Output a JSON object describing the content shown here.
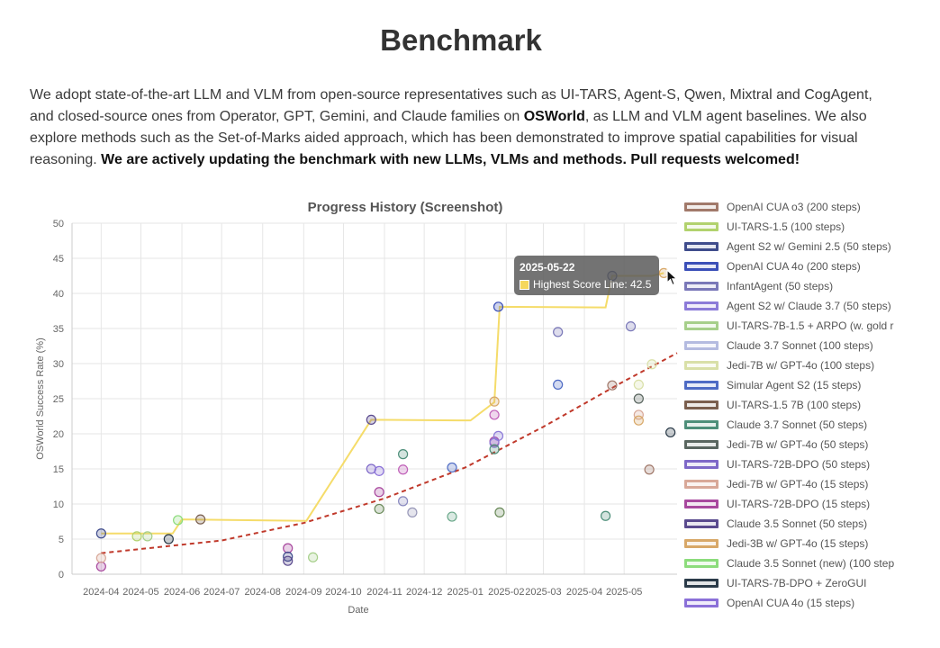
{
  "heading": "Benchmark",
  "intro": {
    "p1": "We adopt state-of-the-art LLM and VLM from open-source representatives such as UI-TARS, Agent-S, Qwen, Mixtral and CogAgent, and closed-source ones from Operator, GPT, Gemini, and Claude families on ",
    "bold1": "OSWorld",
    "p2": ", as LLM and VLM agent baselines. We also explore methods such as the Set-of-Marks aided approach, which has been demonstrated to improve spatial capabilities for visual reasoning. ",
    "bold2": "We are actively updating the benchmark with new LLMs, VLMs and methods. Pull requests welcomed!"
  },
  "tooltip": {
    "title": "2025-05-22",
    "label": "Highest Score Line: 42.5"
  },
  "cursor_icon": "mouse-pointer-icon",
  "chart_data": {
    "type": "scatter",
    "title": "Progress History (Screenshot)",
    "xlabel": "Date",
    "ylabel": "OSWorld Success Rate (%)",
    "ylim": [
      0,
      50
    ],
    "yticks": [
      0,
      5,
      10,
      15,
      20,
      25,
      30,
      35,
      40,
      45,
      50
    ],
    "xlim": [
      "2024-03-10",
      "2025-06-10"
    ],
    "xticks": [
      "2024-04",
      "2024-05",
      "2024-06",
      "2024-07",
      "2024-08",
      "2024-09",
      "2024-10",
      "2024-11",
      "2024-12",
      "2025-01",
      "2025-02",
      "2025-03",
      "2025-04",
      "2025-05"
    ],
    "grid": true,
    "legend_position": "right",
    "legend": [
      {
        "label": "OpenAI CUA o3 (200 steps)",
        "color": "#a1796a"
      },
      {
        "label": "UI-TARS-1.5 (100 steps)",
        "color": "#b2d26e"
      },
      {
        "label": "Agent S2 w/ Gemini 2.5 (50 steps)",
        "color": "#3f4c8c"
      },
      {
        "label": "OpenAI CUA 4o (200 steps)",
        "color": "#3b4fb8"
      },
      {
        "label": "InfantAgent (50 steps)",
        "color": "#7a78b8"
      },
      {
        "label": "Agent S2 w/ Claude 3.7 (50 steps)",
        "color": "#8b7ad8"
      },
      {
        "label": "UI-TARS-7B-1.5 + ARPO (w. gold r",
        "color": "#a6cf8a"
      },
      {
        "label": "Claude 3.7 Sonnet (100 steps)",
        "color": "#b4bbe0"
      },
      {
        "label": "Jedi-7B w/ GPT-4o (100 steps)",
        "color": "#d9e0a8"
      },
      {
        "label": "Simular Agent S2 (15 steps)",
        "color": "#4e6bc4"
      },
      {
        "label": "UI-TARS-1.5 7B (100 steps)",
        "color": "#7a5f4e"
      },
      {
        "label": "Claude 3.7 Sonnet (50 steps)",
        "color": "#4e8f7a"
      },
      {
        "label": "Jedi-7B w/ GPT-4o (50 steps)",
        "color": "#5a6660"
      },
      {
        "label": "UI-TARS-72B-DPO (50 steps)",
        "color": "#7e68c8"
      },
      {
        "label": "Jedi-7B w/ GPT-4o (15 steps)",
        "color": "#d8a898"
      },
      {
        "label": "UI-TARS-72B-DPO (15 steps)",
        "color": "#a8489e"
      },
      {
        "label": "Claude 3.5 Sonnet (50 steps)",
        "color": "#5a4a8e"
      },
      {
        "label": "Jedi-3B w/ GPT-4o (15 steps)",
        "color": "#d8a868"
      },
      {
        "label": "Claude 3.5 Sonnet (new) (100 step",
        "color": "#8cdc7c"
      },
      {
        "label": "UI-TARS-7B-DPO + ZeroGUI",
        "color": "#2a3a48"
      },
      {
        "label": "OpenAI CUA 4o (15 steps)",
        "color": "#8a70d8"
      }
    ],
    "highest_score_line": {
      "name": "Highest Score Line",
      "color": "#f5dc6a",
      "points": [
        {
          "x": "2024-04-01",
          "y": 5.8
        },
        {
          "x": "2024-05-25",
          "y": 5.8
        },
        {
          "x": "2024-06-01",
          "y": 7.8
        },
        {
          "x": "2024-09-03",
          "y": 7.6
        },
        {
          "x": "2024-10-22",
          "y": 22.0
        },
        {
          "x": "2025-01-05",
          "y": 21.9
        },
        {
          "x": "2025-01-23",
          "y": 24.5
        },
        {
          "x": "2025-01-27",
          "y": 38.1
        },
        {
          "x": "2025-04-17",
          "y": 38.0
        },
        {
          "x": "2025-04-22",
          "y": 42.5
        },
        {
          "x": "2025-05-22",
          "y": 42.5
        },
        {
          "x": "2025-05-31",
          "y": 42.9
        }
      ]
    },
    "trend_line": {
      "color": "#c0392b",
      "style": "dashed",
      "points": [
        {
          "x": "2024-04-01",
          "y": 3.0
        },
        {
          "x": "2024-07-01",
          "y": 4.8
        },
        {
          "x": "2024-09-01",
          "y": 7.3
        },
        {
          "x": "2024-11-01",
          "y": 10.8
        },
        {
          "x": "2025-01-01",
          "y": 15.2
        },
        {
          "x": "2025-03-01",
          "y": 21.0
        },
        {
          "x": "2025-05-01",
          "y": 27.5
        },
        {
          "x": "2025-06-10",
          "y": 31.5
        }
      ]
    },
    "points": [
      {
        "x": "2024-04-01",
        "y": 5.8,
        "color": "#3f4c8c"
      },
      {
        "x": "2024-04-01",
        "y": 1.1,
        "color": "#a8489e"
      },
      {
        "x": "2024-04-01",
        "y": 2.3,
        "color": "#d8a898"
      },
      {
        "x": "2024-04-28",
        "y": 5.4,
        "color": "#b2d26e"
      },
      {
        "x": "2024-05-06",
        "y": 5.4,
        "color": "#a6cf8a"
      },
      {
        "x": "2024-05-22",
        "y": 5.0,
        "color": "#2a3a48"
      },
      {
        "x": "2024-05-29",
        "y": 7.7,
        "color": "#8cdc7c"
      },
      {
        "x": "2024-06-15",
        "y": 7.8,
        "color": "#7a5f4e"
      },
      {
        "x": "2024-08-20",
        "y": 3.7,
        "color": "#a8489e"
      },
      {
        "x": "2024-08-20",
        "y": 2.5,
        "color": "#3f4c8c"
      },
      {
        "x": "2024-08-20",
        "y": 1.9,
        "color": "#5a4a8e"
      },
      {
        "x": "2024-09-08",
        "y": 2.4,
        "color": "#a6cf8a"
      },
      {
        "x": "2024-10-22",
        "y": 22.0,
        "color": "#5a4a8e"
      },
      {
        "x": "2024-10-22",
        "y": 15.0,
        "color": "#7e68c8"
      },
      {
        "x": "2024-10-28",
        "y": 14.7,
        "color": "#8a70d8"
      },
      {
        "x": "2024-10-28",
        "y": 11.7,
        "color": "#a8489e"
      },
      {
        "x": "2024-10-28",
        "y": 9.3,
        "color": "#6a8a5a"
      },
      {
        "x": "2024-11-15",
        "y": 17.1,
        "color": "#4e8f7a"
      },
      {
        "x": "2024-11-15",
        "y": 14.9,
        "color": "#c060b8"
      },
      {
        "x": "2024-11-15",
        "y": 10.4,
        "color": "#8a8ac0"
      },
      {
        "x": "2024-11-22",
        "y": 8.8,
        "color": "#9898b8"
      },
      {
        "x": "2024-12-22",
        "y": 15.2,
        "color": "#4e6bc4"
      },
      {
        "x": "2024-12-22",
        "y": 8.2,
        "color": "#6aa88a"
      },
      {
        "x": "2025-01-23",
        "y": 24.6,
        "color": "#d8a868"
      },
      {
        "x": "2025-01-23",
        "y": 22.7,
        "color": "#c060b8"
      },
      {
        "x": "2025-01-23",
        "y": 18.9,
        "color": "#a8489e"
      },
      {
        "x": "2025-01-23",
        "y": 18.7,
        "color": "#8b7ad8"
      },
      {
        "x": "2025-01-23",
        "y": 17.8,
        "color": "#4e8f7a"
      },
      {
        "x": "2025-01-26",
        "y": 19.7,
        "color": "#8b7ad8"
      },
      {
        "x": "2025-01-26",
        "y": 38.1,
        "color": "#3b4fb8"
      },
      {
        "x": "2025-01-27",
        "y": 8.8,
        "color": "#6a8a5a"
      },
      {
        "x": "2025-03-12",
        "y": 34.5,
        "color": "#7a78b8"
      },
      {
        "x": "2025-03-12",
        "y": 27.0,
        "color": "#4e6bc4"
      },
      {
        "x": "2025-04-17",
        "y": 8.3,
        "color": "#4e8f7a"
      },
      {
        "x": "2025-04-22",
        "y": 42.5,
        "color": "#3f4c8c"
      },
      {
        "x": "2025-04-22",
        "y": 26.9,
        "color": "#a1796a"
      },
      {
        "x": "2025-05-06",
        "y": 35.3,
        "color": "#7a78b8"
      },
      {
        "x": "2025-05-12",
        "y": 27.0,
        "color": "#d9e0a8"
      },
      {
        "x": "2025-05-12",
        "y": 25.0,
        "color": "#5a6660"
      },
      {
        "x": "2025-05-12",
        "y": 22.7,
        "color": "#d8a898"
      },
      {
        "x": "2025-05-12",
        "y": 21.9,
        "color": "#d8a868"
      },
      {
        "x": "2025-05-20",
        "y": 14.9,
        "color": "#a1796a"
      },
      {
        "x": "2025-05-22",
        "y": 29.9,
        "color": "#d9e0a8"
      },
      {
        "x": "2025-05-31",
        "y": 42.9,
        "color": "#d8a868"
      },
      {
        "x": "2025-06-05",
        "y": 20.2,
        "color": "#2a3a48"
      }
    ]
  }
}
